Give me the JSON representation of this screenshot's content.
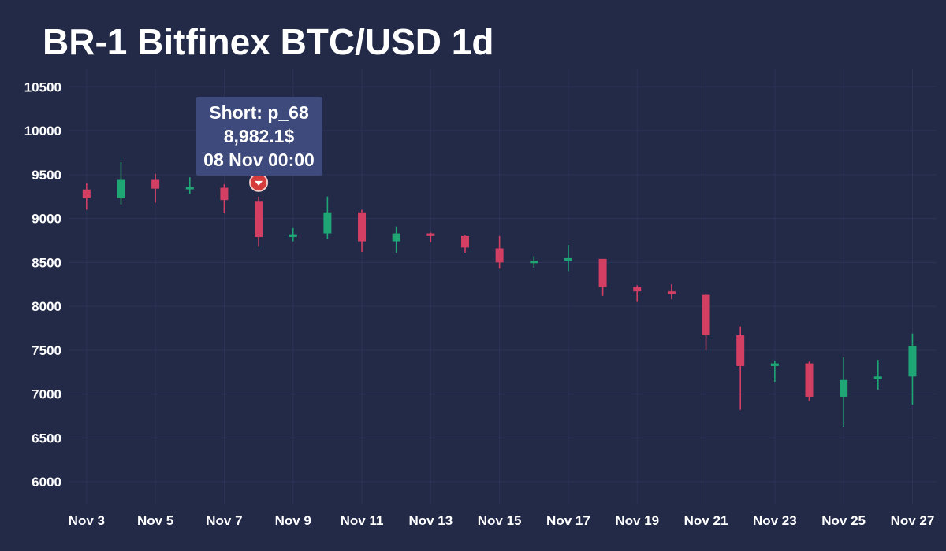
{
  "title": "BR-1 Bitfinex BTC/USD 1d",
  "tooltip": {
    "line1": "Short: p_68",
    "line2": "8,982.1$",
    "line3": "08 Nov 00:00"
  },
  "colors": {
    "background": "#232a48",
    "up": "#1fa675",
    "down": "#d23f63",
    "grid": "#2c3457",
    "marker": "#d63b3b"
  },
  "chart_data": {
    "type": "candlestick",
    "title": "BR-1 Bitfinex BTC/USD 1d",
    "ylim": [
      5750,
      10700
    ],
    "y_ticks": [
      6000,
      6500,
      7000,
      7500,
      8000,
      8500,
      9000,
      9500,
      10000,
      10500
    ],
    "x_ticks": [
      "Nov 3",
      "Nov 5",
      "Nov 7",
      "Nov 9",
      "Nov 11",
      "Nov 13",
      "Nov 15",
      "Nov 17",
      "Nov 19",
      "Nov 21",
      "Nov 23",
      "Nov 25",
      "Nov 27"
    ],
    "x_range_days": [
      2.5,
      27.7
    ],
    "grid": true,
    "candles": [
      {
        "day": 3,
        "open": 9330,
        "high": 9400,
        "low": 9100,
        "close": 9230
      },
      {
        "day": 4,
        "open": 9230,
        "high": 9640,
        "low": 9160,
        "close": 9440
      },
      {
        "day": 5,
        "open": 9440,
        "high": 9510,
        "low": 9180,
        "close": 9340
      },
      {
        "day": 6,
        "open": 9340,
        "high": 9470,
        "low": 9280,
        "close": 9350
      },
      {
        "day": 7,
        "open": 9350,
        "high": 9390,
        "low": 9060,
        "close": 9210
      },
      {
        "day": 8,
        "open": 9200,
        "high": 9250,
        "low": 8680,
        "close": 8790
      },
      {
        "day": 9,
        "open": 8790,
        "high": 8890,
        "low": 8740,
        "close": 8820
      },
      {
        "day": 10,
        "open": 8830,
        "high": 9250,
        "low": 8770,
        "close": 9070
      },
      {
        "day": 11,
        "open": 9070,
        "high": 9100,
        "low": 8620,
        "close": 8740
      },
      {
        "day": 12,
        "open": 8740,
        "high": 8910,
        "low": 8610,
        "close": 8830
      },
      {
        "day": 13,
        "open": 8830,
        "high": 8840,
        "low": 8730,
        "close": 8800
      },
      {
        "day": 14,
        "open": 8800,
        "high": 8810,
        "low": 8610,
        "close": 8670
      },
      {
        "day": 15,
        "open": 8660,
        "high": 8800,
        "low": 8430,
        "close": 8500
      },
      {
        "day": 16,
        "open": 8500,
        "high": 8570,
        "low": 8440,
        "close": 8510
      },
      {
        "day": 17,
        "open": 8530,
        "high": 8700,
        "low": 8400,
        "close": 8540
      },
      {
        "day": 18,
        "open": 8540,
        "high": 8540,
        "low": 8120,
        "close": 8220
      },
      {
        "day": 19,
        "open": 8220,
        "high": 8240,
        "low": 8050,
        "close": 8170
      },
      {
        "day": 20,
        "open": 8170,
        "high": 8250,
        "low": 8080,
        "close": 8140
      },
      {
        "day": 21,
        "open": 8130,
        "high": 8140,
        "low": 7500,
        "close": 7670
      },
      {
        "day": 22,
        "open": 7670,
        "high": 7770,
        "low": 6820,
        "close": 7320
      },
      {
        "day": 23,
        "open": 7320,
        "high": 7380,
        "low": 7140,
        "close": 7350
      },
      {
        "day": 24,
        "open": 7350,
        "high": 7370,
        "low": 6920,
        "close": 6970
      },
      {
        "day": 25,
        "open": 6970,
        "high": 7420,
        "low": 6620,
        "close": 7160
      },
      {
        "day": 26,
        "open": 7170,
        "high": 7390,
        "low": 7050,
        "close": 7200
      },
      {
        "day": 27,
        "open": 7200,
        "high": 7690,
        "low": 6880,
        "close": 7550
      }
    ],
    "markers": [
      {
        "day": 8,
        "price": 9410,
        "type": "short"
      }
    ]
  }
}
